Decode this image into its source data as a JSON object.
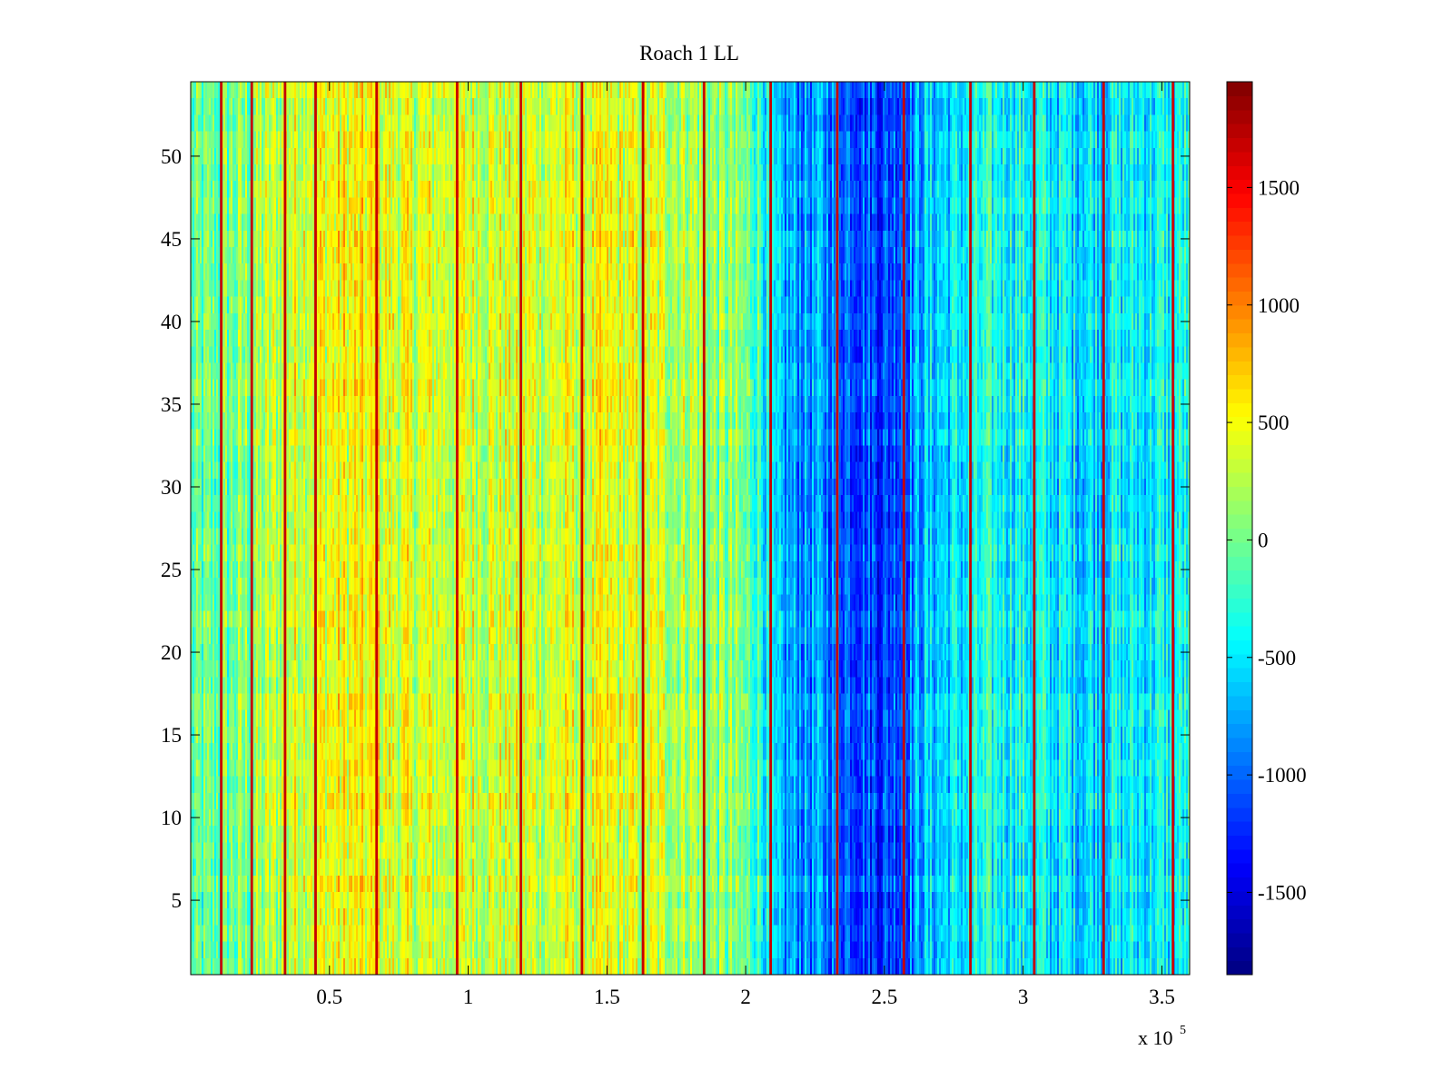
{
  "chart_data": {
    "type": "heatmap",
    "title": "Roach 1 LL",
    "xlabel": "",
    "ylabel": "",
    "x_exponent_base": "x 10",
    "x_exponent": "5",
    "xlim": [
      0,
      3.6
    ],
    "ylim": [
      0.5,
      54.5
    ],
    "x_ticks": [
      0.5,
      1,
      1.5,
      2,
      2.5,
      3,
      3.5
    ],
    "x_tick_labels": [
      "0.5",
      "1",
      "1.5",
      "2",
      "2.5",
      "3",
      "3.5"
    ],
    "y_ticks": [
      5,
      10,
      15,
      20,
      25,
      30,
      35,
      40,
      45,
      50
    ],
    "y_tick_labels": [
      "5",
      "10",
      "15",
      "20",
      "25",
      "30",
      "35",
      "40",
      "45",
      "50"
    ],
    "rows": 54,
    "colormap": "jet",
    "colorbar": {
      "clim": [
        -1850,
        1950
      ],
      "ticks": [
        -1500,
        -1000,
        -500,
        0,
        500,
        1000,
        1500
      ],
      "tick_labels": [
        "-1500",
        "-1000",
        "-500",
        "0",
        "500",
        "1000",
        "1500"
      ]
    },
    "column_profile": [
      {
        "x": 0.0,
        "value": -150
      },
      {
        "x": 0.2,
        "value": 50
      },
      {
        "x": 0.4,
        "value": 450
      },
      {
        "x": 0.6,
        "value": 500
      },
      {
        "x": 0.8,
        "value": 350
      },
      {
        "x": 1.0,
        "value": 400
      },
      {
        "x": 1.2,
        "value": 350
      },
      {
        "x": 1.5,
        "value": 420
      },
      {
        "x": 1.8,
        "value": 250
      },
      {
        "x": 2.05,
        "value": -150
      },
      {
        "x": 2.1,
        "value": -750
      },
      {
        "x": 2.3,
        "value": -850
      },
      {
        "x": 2.5,
        "value": -1150
      },
      {
        "x": 2.65,
        "value": -650
      },
      {
        "x": 2.9,
        "value": -350
      },
      {
        "x": 3.2,
        "value": -500
      },
      {
        "x": 3.6,
        "value": -400
      }
    ],
    "high_value_columns_x": [
      0.11,
      0.22,
      0.34,
      0.45,
      0.67,
      0.96,
      1.19,
      1.41,
      1.63,
      1.85,
      2.09,
      2.33,
      2.57,
      2.81,
      3.04,
      3.29,
      3.54
    ],
    "high_value_column_value": 1950,
    "noise_amplitude": 450
  }
}
